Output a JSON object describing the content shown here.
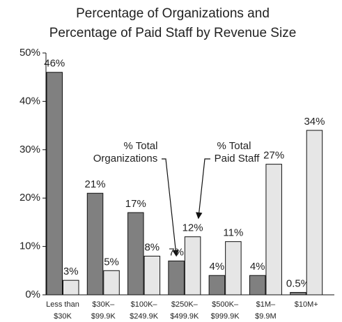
{
  "chart_data": {
    "type": "bar",
    "title": [
      "Percentage of Organizations and",
      "Percentage of Paid Staff by Revenue Size"
    ],
    "categories": [
      [
        "Less than",
        "$30K"
      ],
      [
        "$30K–",
        "$99.9K"
      ],
      [
        "$100K–",
        "$249.9K"
      ],
      [
        "$250K–",
        "$499.9K"
      ],
      [
        "$500K–",
        "$999.9K"
      ],
      [
        "$1M–",
        "$9.9M"
      ],
      [
        "$10M+"
      ]
    ],
    "series": [
      {
        "color": "#808080",
        "values": [
          46,
          21,
          17,
          7,
          4,
          4,
          0.5
        ],
        "value_labels": [
          "46%",
          "21%",
          "17%",
          "7%",
          "4%",
          "4%",
          "0.5%"
        ]
      },
      {
        "color": "#e6e6e6",
        "values": [
          3,
          5,
          8,
          12,
          11,
          27,
          34
        ],
        "value_labels": [
          "3%",
          "5%",
          "8%",
          "12%",
          "11%",
          "27%",
          "34%"
        ]
      }
    ],
    "annotations": [
      [
        "% Total",
        "Organizations"
      ],
      [
        "% Total",
        "Paid Staff"
      ]
    ],
    "ylim": [
      0,
      50
    ],
    "yticks": [
      {
        "value": 0,
        "label": "0%"
      },
      {
        "value": 10,
        "label": "10%"
      },
      {
        "value": 20,
        "label": "20%"
      },
      {
        "value": 30,
        "label": "30%"
      },
      {
        "value": 40,
        "label": "40%"
      },
      {
        "value": 50,
        "label": "50%"
      }
    ]
  }
}
